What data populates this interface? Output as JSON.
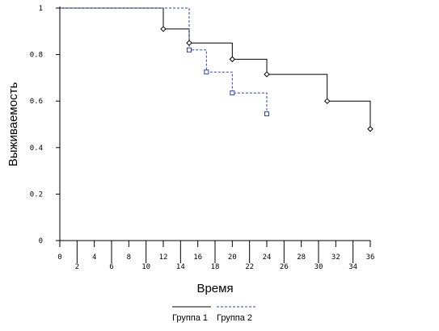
{
  "chart_data": {
    "type": "line",
    "step": true,
    "title": "",
    "xlabel": "Время",
    "ylabel": "Выживаемость",
    "xlim": [
      0,
      36
    ],
    "ylim": [
      0,
      1
    ],
    "x_ticks_top": [
      "0",
      "4",
      "8",
      "12",
      "16",
      "20",
      "24",
      "28",
      "32",
      "36"
    ],
    "x_ticks_bottom": [
      "2",
      "6",
      "10",
      "14",
      "18",
      "22",
      "26",
      "30",
      "34"
    ],
    "y_ticks": [
      "0",
      "0.2",
      "0.4",
      "0.6",
      "0.8",
      "1"
    ],
    "grid": false,
    "legend": "bottom-center",
    "series": [
      {
        "name": "Группа 1",
        "color": "#000000",
        "dash": "solid",
        "marker": "diamond",
        "steps": [
          [
            0,
            1
          ],
          [
            12,
            0.91
          ],
          [
            15,
            0.85
          ],
          [
            20,
            0.78
          ],
          [
            24,
            0.715
          ],
          [
            31,
            0.6
          ],
          [
            36,
            0.48
          ]
        ],
        "markers": [
          [
            12,
            0.91
          ],
          [
            15,
            0.85
          ],
          [
            20,
            0.78
          ],
          [
            24,
            0.715
          ],
          [
            31,
            0.6
          ],
          [
            36,
            0.48
          ]
        ],
        "end_x": 36
      },
      {
        "name": "Группа 2",
        "color": "#2a3fbf",
        "dash": "dashed",
        "marker": "square",
        "steps": [
          [
            0,
            1
          ],
          [
            15,
            0.82
          ],
          [
            17,
            0.725
          ],
          [
            20,
            0.635
          ],
          [
            24,
            0.545
          ]
        ],
        "markers": [
          [
            15,
            0.82
          ],
          [
            17,
            0.725
          ],
          [
            20,
            0.635
          ],
          [
            24,
            0.545
          ]
        ],
        "end_x": 24
      }
    ]
  }
}
